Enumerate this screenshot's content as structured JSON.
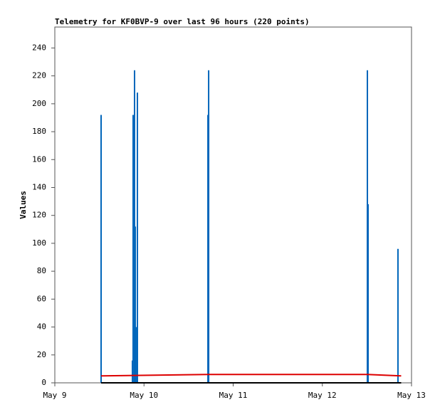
{
  "chart_data": {
    "type": "line",
    "title": "Telemetry for KF0BVP-9 over last 96 hours (220 points)",
    "y_label": "Values",
    "xlim": [
      0,
      4
    ],
    "xticks": [
      {
        "value": 0,
        "label": "May 9"
      },
      {
        "value": 1,
        "label": "May 10"
      },
      {
        "value": 2,
        "label": "May 11"
      },
      {
        "value": 3,
        "label": "May 12"
      },
      {
        "value": 4,
        "label": "May 13"
      }
    ],
    "ylim": [
      0,
      255
    ],
    "yticks": [
      0,
      20,
      40,
      60,
      80,
      100,
      120,
      140,
      160,
      180,
      200,
      220,
      240
    ],
    "grid": false,
    "series": [
      {
        "color": "#0066bb",
        "style": "spike",
        "x": [
          0.519,
          0.519,
          0.87,
          0.878,
          0.894,
          0.902,
          0.91,
          0.926,
          1.717,
          1.725,
          3.505,
          3.513,
          3.848
        ],
        "values": [
          7,
          192,
          16,
          192,
          224,
          112,
          40,
          208,
          192,
          224,
          224,
          128,
          96
        ]
      },
      {
        "color": "#dd0000",
        "style": "line",
        "x": [
          0.519,
          1.717,
          3.505,
          3.884
        ],
        "values": [
          5,
          6,
          6,
          5
        ]
      },
      {
        "color": "#000000",
        "style": "line",
        "x": [
          0.519,
          3.884
        ],
        "values": [
          0,
          0
        ]
      }
    ]
  }
}
